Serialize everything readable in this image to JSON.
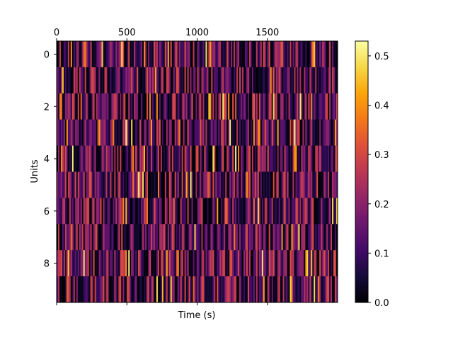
{
  "chart_data": {
    "type": "heatmap",
    "colormap": "inferno",
    "title": "",
    "xlabel": "Time (s)",
    "ylabel": "Units",
    "x_tick_position": "top",
    "xlim": [
      0,
      2000
    ],
    "x_ticks": [
      0,
      500,
      1000,
      1500
    ],
    "x_tick_labels": [
      "0",
      "500",
      "1000",
      "1500"
    ],
    "y_ticks": [
      0,
      2,
      4,
      6,
      8
    ],
    "y_tick_labels": [
      "0",
      "2",
      "4",
      "6",
      "8"
    ],
    "units": [
      0,
      1,
      2,
      3,
      4,
      5,
      6,
      7,
      8,
      9
    ],
    "n_time_bins": 200,
    "bin_width_s": 10,
    "vmin": 0.0,
    "vmax": 0.53,
    "colorbar_ticks": [
      0.0,
      0.1,
      0.2,
      0.3,
      0.4,
      0.5
    ],
    "colorbar_tick_labels": [
      "0.0",
      "0.1",
      "0.2",
      "0.3",
      "0.4",
      "0.5"
    ],
    "value_distribution": "per-bin activity values, mostly 0.05-0.30 with occasional peaks up to ~0.5",
    "grid": false,
    "legend": "none"
  }
}
